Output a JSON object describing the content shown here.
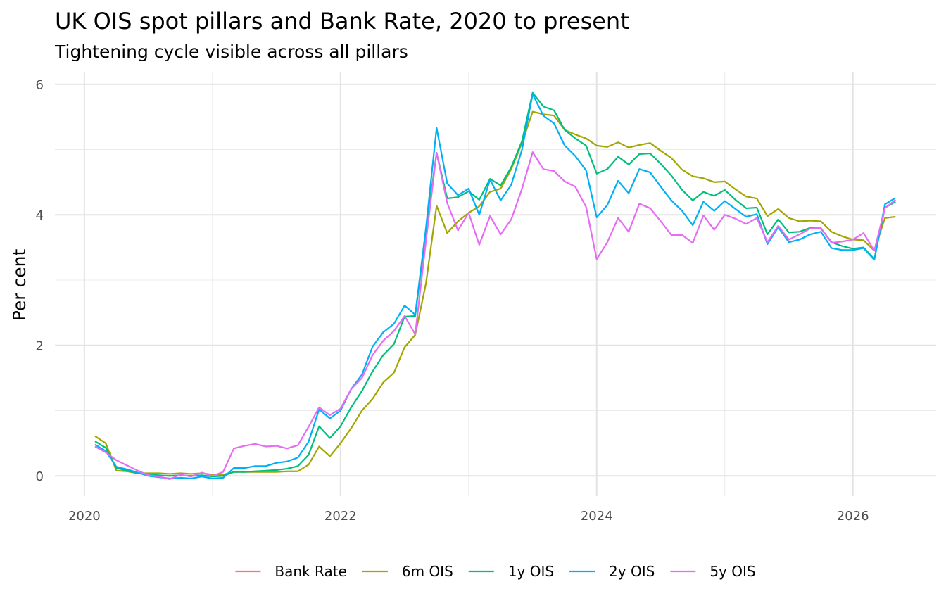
{
  "chart_data": {
    "type": "line",
    "title": "UK OIS spot pillars and Bank Rate, 2020 to present",
    "subtitle": "Tightening cycle visible across all pillars",
    "y_label": "Per cent",
    "x": [
      2020.083,
      2020.167,
      2020.25,
      2020.333,
      2020.417,
      2020.5,
      2020.583,
      2020.667,
      2020.75,
      2020.833,
      2020.917,
      2021,
      2021.083,
      2021.167,
      2021.25,
      2021.333,
      2021.417,
      2021.5,
      2021.583,
      2021.667,
      2021.75,
      2021.833,
      2021.917,
      2022,
      2022.083,
      2022.167,
      2022.25,
      2022.333,
      2022.417,
      2022.5,
      2022.583,
      2022.667,
      2022.75,
      2022.833,
      2022.917,
      2023,
      2023.083,
      2023.167,
      2023.25,
      2023.333,
      2023.417,
      2023.5,
      2023.583,
      2023.667,
      2023.75,
      2023.833,
      2023.917,
      2024,
      2024.083,
      2024.167,
      2024.25,
      2024.333,
      2024.417,
      2024.5,
      2024.583,
      2024.667,
      2024.75,
      2024.833,
      2024.917,
      2025,
      2025.083,
      2025.167,
      2025.25,
      2025.333,
      2025.417,
      2025.5,
      2025.583,
      2025.667,
      2025.75,
      2025.833,
      2025.917,
      2026,
      2026.083,
      2026.167,
      2026.25,
      2026.333
    ],
    "series": [
      {
        "name": "Bank Rate",
        "color": "#F8766D",
        "values": [
          null,
          null,
          null,
          null,
          null,
          null,
          null,
          null,
          null,
          null,
          null,
          null,
          null,
          null,
          null,
          null,
          null,
          null,
          null,
          null,
          null,
          null,
          null,
          null,
          null,
          null,
          null,
          null,
          null,
          null,
          null,
          null,
          null,
          null,
          null,
          null,
          null,
          null,
          null,
          null,
          null,
          null,
          null,
          null,
          null,
          null,
          null,
          null,
          null,
          null,
          null,
          null,
          null,
          null,
          null,
          null,
          null,
          null,
          null,
          null,
          null,
          null,
          null,
          null,
          null,
          null,
          null,
          null,
          null,
          null,
          null,
          null,
          null,
          null,
          null,
          null
        ]
      },
      {
        "name": "6m OIS",
        "color": "#A3A500",
        "values": [
          0.61,
          0.5,
          0.08,
          0.07,
          0.04,
          0.04,
          0.04,
          0.03,
          0.04,
          0.03,
          0.04,
          0.02,
          0.02,
          0.06,
          0.06,
          0.06,
          0.06,
          0.06,
          0.07,
          0.07,
          0.17,
          0.45,
          0.3,
          0.5,
          0.73,
          1.0,
          1.18,
          1.43,
          1.58,
          1.97,
          2.16,
          2.95,
          4.14,
          3.72,
          3.9,
          4.03,
          4.13,
          4.35,
          4.4,
          4.7,
          5.1,
          5.58,
          5.54,
          5.52,
          5.3,
          5.23,
          5.17,
          5.06,
          5.04,
          5.11,
          5.03,
          5.07,
          5.1,
          4.98,
          4.87,
          4.69,
          4.59,
          4.56,
          4.5,
          4.51,
          4.39,
          4.28,
          4.25,
          3.98,
          4.09,
          3.95,
          3.9,
          3.91,
          3.9,
          3.74,
          3.67,
          3.62,
          3.61,
          3.45,
          3.95,
          3.97
        ]
      },
      {
        "name": "1y OIS",
        "color": "#00BF7D",
        "values": [
          0.53,
          0.43,
          0.12,
          0.08,
          0.04,
          0.02,
          0.01,
          0.0,
          0.01,
          0.0,
          0.01,
          -0.01,
          0.0,
          0.06,
          0.06,
          0.07,
          0.08,
          0.09,
          0.11,
          0.15,
          0.32,
          0.76,
          0.58,
          0.76,
          1.05,
          1.3,
          1.6,
          1.85,
          2.02,
          2.44,
          2.45,
          3.75,
          4.95,
          4.25,
          4.27,
          4.36,
          4.23,
          4.55,
          4.45,
          4.73,
          5.13,
          5.87,
          5.66,
          5.6,
          5.3,
          5.17,
          5.06,
          4.63,
          4.7,
          4.89,
          4.77,
          4.93,
          4.94,
          4.78,
          4.6,
          4.38,
          4.22,
          4.35,
          4.29,
          4.38,
          4.23,
          4.1,
          4.11,
          3.7,
          3.93,
          3.73,
          3.74,
          3.8,
          3.79,
          3.58,
          3.52,
          3.48,
          3.5,
          3.32,
          4.11,
          4.2
        ]
      },
      {
        "name": "2y OIS",
        "color": "#00B0F6",
        "values": [
          0.48,
          0.38,
          0.14,
          0.1,
          0.05,
          0.0,
          -0.02,
          -0.04,
          -0.03,
          -0.04,
          -0.01,
          -0.04,
          -0.03,
          0.12,
          0.12,
          0.15,
          0.15,
          0.2,
          0.22,
          0.28,
          0.52,
          1.02,
          0.88,
          1.0,
          1.33,
          1.55,
          1.98,
          2.2,
          2.33,
          2.61,
          2.47,
          3.8,
          5.33,
          4.48,
          4.3,
          4.4,
          4.0,
          4.54,
          4.22,
          4.46,
          5.0,
          5.85,
          5.52,
          5.4,
          5.06,
          4.9,
          4.68,
          3.96,
          4.15,
          4.52,
          4.33,
          4.7,
          4.65,
          4.43,
          4.22,
          4.06,
          3.84,
          4.2,
          4.06,
          4.21,
          4.09,
          3.97,
          4.01,
          3.55,
          3.81,
          3.58,
          3.62,
          3.7,
          3.74,
          3.49,
          3.46,
          3.46,
          3.49,
          3.31,
          4.16,
          4.26
        ]
      },
      {
        "name": "5y OIS",
        "color": "#E76BF3",
        "values": [
          0.45,
          0.36,
          0.24,
          0.16,
          0.08,
          0.01,
          -0.01,
          -0.05,
          0.02,
          -0.01,
          0.05,
          0.0,
          0.06,
          0.42,
          0.46,
          0.49,
          0.45,
          0.46,
          0.42,
          0.47,
          0.75,
          1.05,
          0.93,
          1.03,
          1.33,
          1.5,
          1.85,
          2.07,
          2.22,
          2.45,
          2.17,
          3.6,
          4.95,
          4.18,
          3.76,
          4.03,
          3.54,
          3.98,
          3.7,
          3.93,
          4.4,
          4.96,
          4.7,
          4.67,
          4.51,
          4.43,
          4.12,
          3.32,
          3.58,
          3.95,
          3.74,
          4.17,
          4.1,
          3.9,
          3.69,
          3.69,
          3.57,
          3.99,
          3.77,
          4.0,
          3.94,
          3.86,
          3.95,
          3.58,
          3.83,
          3.62,
          3.7,
          3.79,
          3.8,
          3.57,
          3.59,
          3.62,
          3.72,
          3.45,
          4.1,
          4.23
        ]
      }
    ],
    "xlim": [
      2019.77,
      2026.65
    ],
    "xticks": [
      2020,
      2022,
      2024,
      2026
    ],
    "ylim": [
      -0.31,
      6.18
    ],
    "yticks": [
      0,
      2,
      4,
      6
    ],
    "grid": true,
    "minor_grid": true,
    "legend": "bottom"
  }
}
